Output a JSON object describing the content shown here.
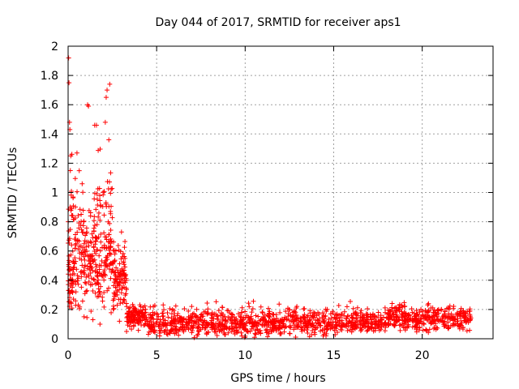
{
  "chart_data": {
    "type": "scatter",
    "title": "Day 044 of 2017, SRMTID for receiver aps1",
    "xlabel": "GPS time / hours",
    "ylabel": "SRMTID / TECUs",
    "xlim": [
      0,
      24
    ],
    "ylim": [
      0,
      2
    ],
    "xticks": [
      0,
      5,
      10,
      15,
      20
    ],
    "xtick_labels": [
      "0",
      "5",
      "10",
      "15",
      "20"
    ],
    "yticks": [
      0,
      0.2,
      0.4,
      0.6,
      0.8,
      1,
      1.2,
      1.4,
      1.6,
      1.8,
      2
    ],
    "ytick_labels": [
      "0",
      "0.2",
      "0.4",
      "0.6",
      "0.8",
      "1",
      "1.2",
      "1.4",
      "1.6",
      "1.8",
      "2"
    ],
    "grid": true,
    "marker": "plus",
    "marker_color": "#ff0000",
    "series": [
      {
        "name": "SRMTID",
        "segments": [
          {
            "x_range": [
              0.0,
              0.3
            ],
            "count": 70,
            "y_min": 0.15,
            "y_max": 1.5,
            "y_mode": 0.4
          },
          {
            "x_range": [
              0.3,
              1.5
            ],
            "count": 150,
            "y_min": 0.1,
            "y_max": 1.3,
            "y_mode": 0.55
          },
          {
            "x_range": [
              1.5,
              2.5
            ],
            "count": 150,
            "y_min": 0.1,
            "y_max": 1.5,
            "y_mode": 0.5
          },
          {
            "x_range": [
              2.5,
              3.3
            ],
            "count": 110,
            "y_min": 0.1,
            "y_max": 0.85,
            "y_mode": 0.35
          },
          {
            "x_range": [
              3.3,
              4.5
            ],
            "count": 120,
            "y_min": 0.05,
            "y_max": 0.27,
            "y_mode": 0.15
          },
          {
            "x_range": [
              4.5,
              10.0
            ],
            "count": 420,
            "y_min": 0.0,
            "y_max": 0.27,
            "y_mode": 0.09
          },
          {
            "x_range": [
              10.0,
              18.0
            ],
            "count": 560,
            "y_min": 0.0,
            "y_max": 0.27,
            "y_mode": 0.1
          },
          {
            "x_range": [
              18.0,
              22.8
            ],
            "count": 360,
            "y_min": 0.02,
            "y_max": 0.29,
            "y_mode": 0.13
          }
        ],
        "points": [
          [
            0.03,
            1.92
          ],
          [
            0.05,
            1.75
          ],
          [
            0.08,
            1.48
          ],
          [
            0.1,
            1.43
          ],
          [
            0.15,
            1.25
          ],
          [
            0.5,
            1.27
          ],
          [
            1.1,
            1.6
          ],
          [
            1.15,
            1.59
          ],
          [
            1.5,
            1.46
          ],
          [
            1.6,
            1.46
          ],
          [
            2.1,
            1.48
          ],
          [
            2.15,
            1.65
          ],
          [
            2.2,
            1.7
          ],
          [
            2.35,
            1.74
          ],
          [
            2.3,
            1.36
          ],
          [
            0.9,
            0.15
          ],
          [
            1.4,
            0.13
          ],
          [
            1.8,
            0.1
          ],
          [
            2.9,
            0.12
          ],
          [
            3.3,
            0.05
          ]
        ]
      }
    ]
  }
}
